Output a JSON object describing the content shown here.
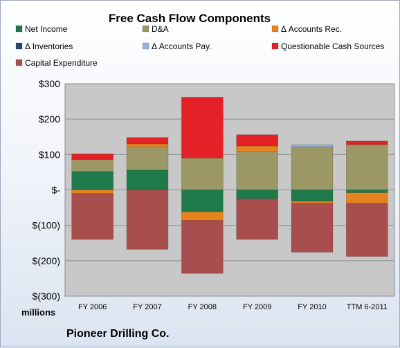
{
  "chart_data": {
    "type": "bar",
    "stacked": true,
    "title": "Free Cash Flow Components",
    "unit_label": "millions",
    "company": "Pioneer Drilling Co.",
    "legend_position": "top",
    "grid": true,
    "ylim": [
      -300,
      300
    ],
    "yticks": [
      {
        "value": 300,
        "label": "$300"
      },
      {
        "value": 200,
        "label": "$200"
      },
      {
        "value": 100,
        "label": "$100"
      },
      {
        "value": 0,
        "label": "$-"
      },
      {
        "value": -100,
        "label": "$(100)"
      },
      {
        "value": -200,
        "label": "$(200)"
      },
      {
        "value": -300,
        "label": "$(300)"
      }
    ],
    "categories": [
      "FY 2006",
      "FY 2007",
      "FY 2008",
      "FY 2009",
      "FY 2010",
      "TTM 6-2011"
    ],
    "series": [
      {
        "name": "Net Income",
        "color": "#1e7a4a",
        "values": [
          52,
          56,
          -62,
          -25,
          -32,
          -8
        ]
      },
      {
        "name": "D&A",
        "color": "#9c9866",
        "values": [
          34,
          66,
          90,
          108,
          122,
          128
        ]
      },
      {
        "name": "Δ Accounts Rec.",
        "color": "#e8821e",
        "values": [
          -10,
          8,
          -24,
          16,
          -6,
          -30
        ]
      },
      {
        "name": "Δ Inventories",
        "color": "#25486e",
        "values": [
          0,
          0,
          0,
          0,
          0,
          0
        ]
      },
      {
        "name": "Δ Accounts Pay.",
        "color": "#93b3d9",
        "values": [
          0,
          0,
          0,
          0,
          6,
          0
        ]
      },
      {
        "name": "Questionable Cash Sources",
        "color": "#e32127",
        "values": [
          16,
          18,
          172,
          32,
          0,
          10
        ]
      },
      {
        "name": "Capital Expenditure",
        "color": "#a84e4e",
        "values": [
          -130,
          -168,
          -150,
          -115,
          -138,
          -150
        ]
      }
    ]
  }
}
